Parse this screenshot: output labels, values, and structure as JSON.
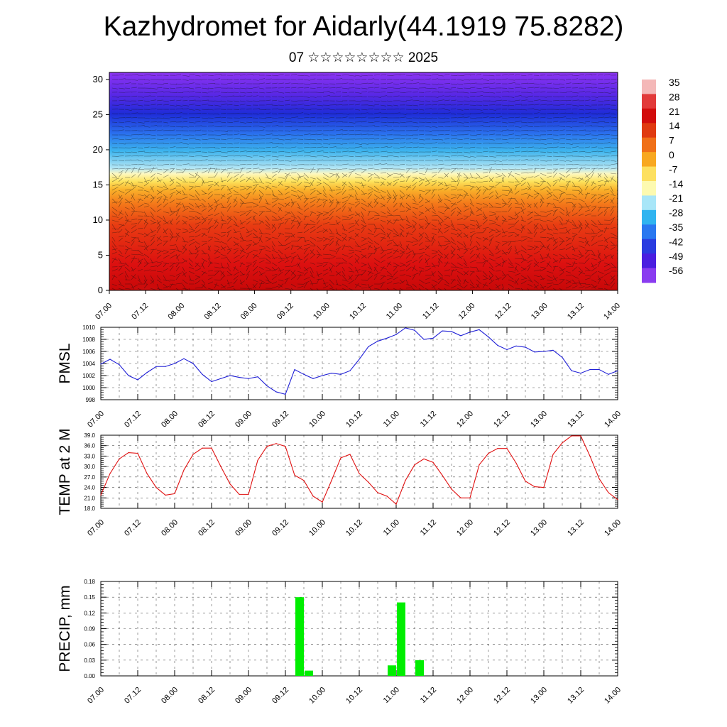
{
  "header": {
    "title": "Kazhydromet for Aidarly(44.1919 75.8282)",
    "subtitle": "07 ☆☆☆☆☆☆☆☆ 2025"
  },
  "time_labels": [
    "07.00",
    "07.12",
    "08.00",
    "08.12",
    "09.00",
    "09.12",
    "10.00",
    "10.12",
    "11.00",
    "11.12",
    "12.00",
    "12.12",
    "13.00",
    "13.12",
    "14.00"
  ],
  "colors": {
    "pmsl_line": "#1f1fd6",
    "temp_line": "#e01010",
    "precip_bar": "#00ee00"
  },
  "chart_data": [
    {
      "type": "heatmap",
      "name": "upper-air cross-section",
      "title": "",
      "xlabel": "",
      "ylabel": "",
      "y_ticks": [
        0,
        5,
        10,
        15,
        20,
        25,
        30
      ],
      "ylim": [
        0,
        31
      ],
      "colorbar": {
        "labels": [
          "35",
          "28",
          "21",
          "14",
          "7",
          "0",
          "-7",
          "-14",
          "-21",
          "-28",
          "-35",
          "-42",
          "-49",
          "-56"
        ],
        "colors": [
          "#f4b8b8",
          "#e23a3a",
          "#d20c0c",
          "#e03a10",
          "#f07018",
          "#f8a820",
          "#fde060",
          "#fdfab0",
          "#a8e6f8",
          "#30b4f0",
          "#2a78f0",
          "#2a3ce0",
          "#4a1ee0",
          "#8a3cf0"
        ]
      }
    },
    {
      "type": "line",
      "name": "pmsl",
      "ylabel": "PMSL",
      "ylim": [
        998,
        1010
      ],
      "y_ticks": [
        "998",
        "1000",
        "1002",
        "1004",
        "1006",
        "1008",
        "1010"
      ],
      "x_start_hours": 0,
      "x_step_hours": 3,
      "values": [
        1003.9,
        1004.7,
        1003.8,
        1002.0,
        1001.3,
        1002.5,
        1003.5,
        1003.5,
        1004.0,
        1004.8,
        1004.0,
        1002.2,
        1001.0,
        1001.5,
        1002.0,
        1001.7,
        1001.5,
        1001.8,
        1000.3,
        999.3,
        998.9,
        1003.0,
        1002.2,
        1001.5,
        1002.0,
        1002.4,
        1002.2,
        1002.8,
        1004.7,
        1006.8,
        1007.7,
        1008.2,
        1008.8,
        1009.9,
        1009.5,
        1008.0,
        1008.2,
        1009.4,
        1009.3,
        1008.6,
        1009.2,
        1009.6,
        1008.4,
        1007.0,
        1006.3,
        1006.9,
        1006.7,
        1005.9,
        1006.0,
        1006.2,
        1005.0,
        1002.8,
        1002.4,
        1003.0,
        1003.0,
        1002.2,
        1002.8
      ]
    },
    {
      "type": "line",
      "name": "temp",
      "ylabel": "TEMP at 2 M",
      "ylim": [
        18,
        39
      ],
      "y_ticks": [
        "18.0",
        "21.0",
        "24.0",
        "27.0",
        "30.0",
        "33.0",
        "36.0",
        "39.0"
      ],
      "x_start_hours": 0,
      "x_step_hours": 3,
      "values": [
        21.8,
        28.0,
        32.2,
        34.0,
        33.8,
        28.0,
        24.0,
        21.8,
        22.2,
        29.0,
        33.5,
        35.3,
        35.3,
        30.0,
        25.0,
        22.0,
        22.0,
        31.8,
        35.8,
        36.6,
        35.8,
        27.5,
        26.0,
        21.5,
        19.8,
        26.0,
        32.5,
        33.5,
        28.0,
        25.5,
        22.5,
        21.5,
        19.2,
        26.0,
        30.5,
        32.2,
        31.2,
        27.5,
        23.5,
        21.0,
        21.0,
        30.5,
        33.8,
        35.2,
        35.2,
        31.0,
        25.8,
        24.2,
        24.0,
        33.5,
        36.8,
        38.8,
        38.8,
        33.0,
        26.5,
        22.5,
        20.5
      ]
    },
    {
      "type": "bar",
      "name": "precip",
      "ylabel": "PRECIP, mm",
      "ylim": [
        0,
        0.18
      ],
      "y_ticks": [
        "0.00",
        "0.03",
        "0.06",
        "0.09",
        "0.12",
        "0.15",
        "0.18"
      ],
      "x_start_hours": 0,
      "x_step_hours": 3,
      "values": [
        0,
        0,
        0,
        0,
        0,
        0,
        0,
        0,
        0,
        0,
        0,
        0,
        0,
        0,
        0,
        0,
        0,
        0,
        0,
        0,
        0,
        0.15,
        0.01,
        0,
        0,
        0,
        0,
        0,
        0,
        0,
        0,
        0.02,
        0.14,
        0,
        0.03,
        0,
        0,
        0,
        0,
        0,
        0,
        0,
        0,
        0,
        0,
        0,
        0,
        0,
        0,
        0,
        0,
        0,
        0,
        0,
        0,
        0
      ]
    }
  ]
}
